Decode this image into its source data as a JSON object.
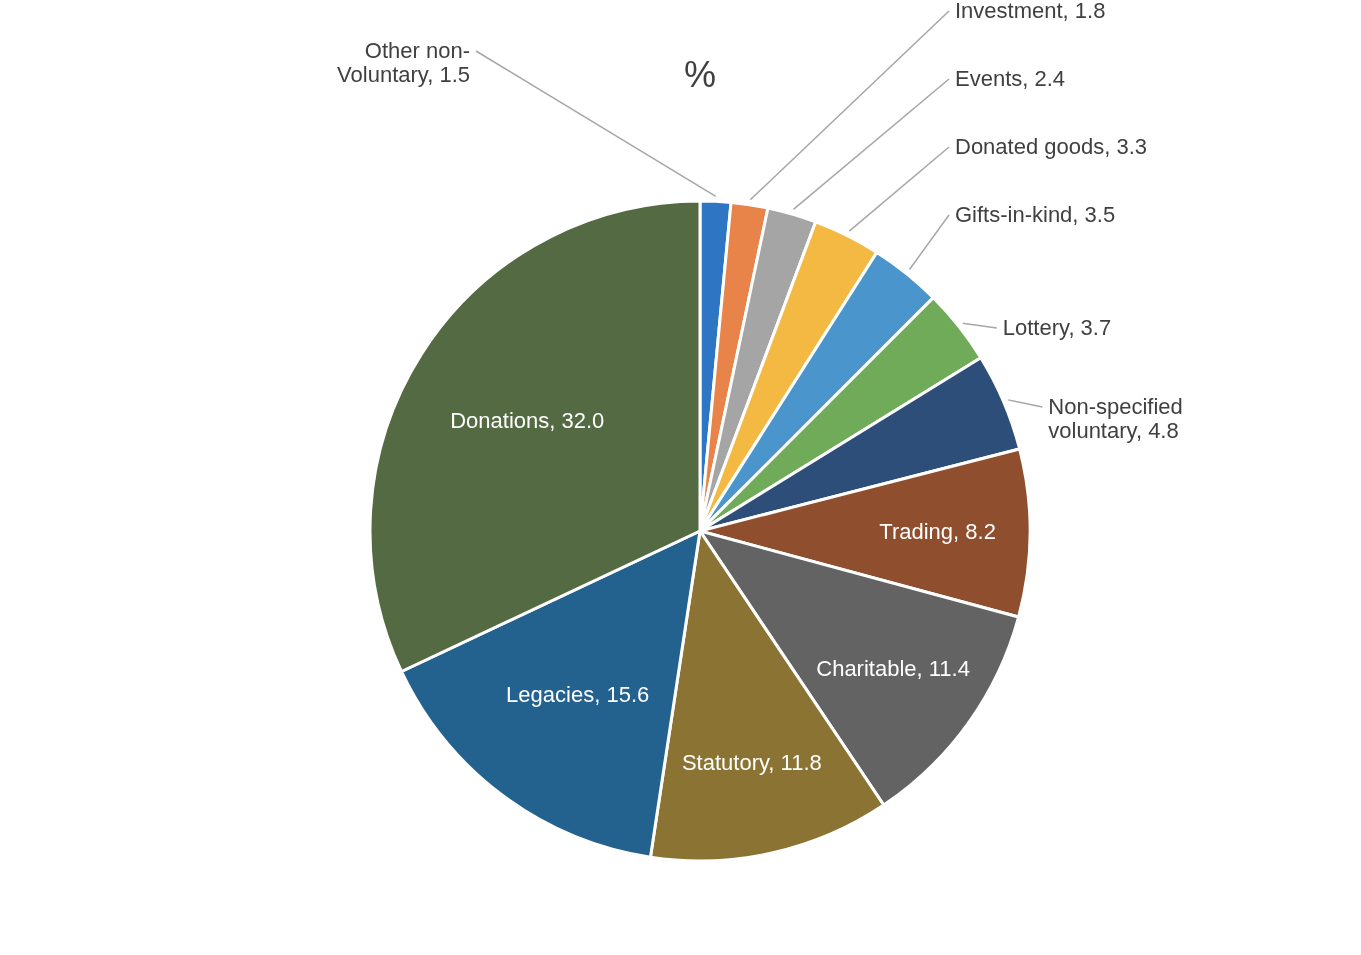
{
  "chart_data": {
    "type": "pie",
    "title": "%",
    "categories": [
      "Other non-Voluntary",
      "Investment",
      "Events",
      "Donated goods",
      "Gifts-in-kind",
      "Lottery",
      "Non-specified voluntary",
      "Trading",
      "Charitable",
      "Statutory",
      "Legacies",
      "Donations"
    ],
    "values": [
      1.5,
      1.8,
      2.4,
      3.3,
      3.5,
      3.7,
      4.8,
      8.2,
      11.4,
      11.8,
      15.6,
      32.0
    ],
    "value_labels": [
      "1.5",
      "1.8",
      "2.4",
      "3.3",
      "3.5",
      "3.7",
      "4.8",
      "8.2",
      "11.4",
      "11.8",
      "15.6",
      "32.0"
    ],
    "data_labels": true,
    "colors": [
      "#2e75c4",
      "#e8834a",
      "#a5a5a5",
      "#f4b942",
      "#4a96cc",
      "#70ab5a",
      "#2e4e7a",
      "#8f4f2e",
      "#636363",
      "#8b7334",
      "#23618e",
      "#546a42"
    ],
    "legend": false
  }
}
